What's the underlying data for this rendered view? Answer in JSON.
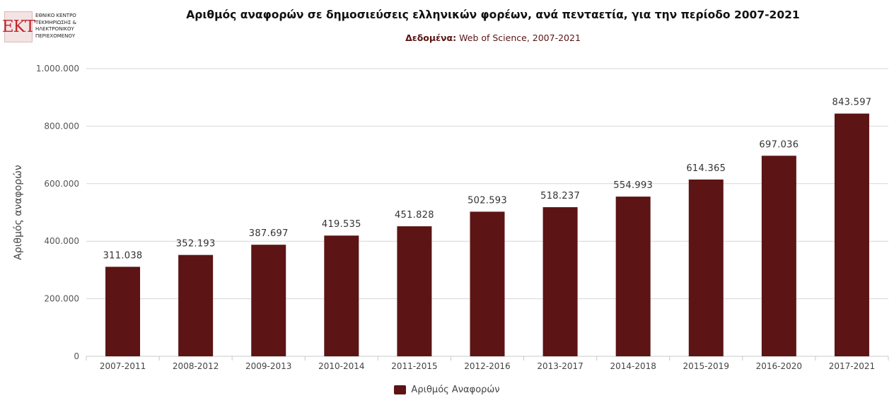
{
  "logo": {
    "mark": "EKT",
    "lines": [
      "ΕΘΝΙΚΟ ΚΕΝΤΡΟ",
      "ΤΕΚΜΗΡΙΩΣΗΣ &",
      "ΗΛΕΚΤΡΟΝΙΚΟΥ",
      "ΠΕΡΙΕΧΟΜΕΝΟΥ"
    ]
  },
  "chart_data": {
    "type": "bar",
    "title": "Αριθμός αναφορών σε δημοσιεύσεις ελληνικών φορέων, ανά πενταετία, για την περίοδο 2007-2021",
    "subtitle_label": "Δεδομένα:",
    "subtitle_value": " Web of Science, 2007-2021",
    "xlabel": "",
    "ylabel": "Αριθμός αναφορών",
    "ylim": [
      0,
      1000000
    ],
    "y_ticks": [
      0,
      200000,
      400000,
      600000,
      800000,
      1000000
    ],
    "y_tick_labels": [
      "0",
      "200.000",
      "400.000",
      "600.000",
      "800.000",
      "1.000.000"
    ],
    "categories": [
      "2007-2011",
      "2008-2012",
      "2009-2013",
      "2010-2014",
      "2011-2015",
      "2012-2016",
      "2013-2017",
      "2014-2018",
      "2015-2019",
      "2016-2020",
      "2017-2021"
    ],
    "series": [
      {
        "name": "Αριθμός Αναφορών",
        "color": "#5c1414",
        "values": [
          311038,
          352193,
          387697,
          419535,
          451828,
          502593,
          518237,
          554993,
          614365,
          697036,
          843597
        ],
        "labels": [
          "311.038",
          "352.193",
          "387.697",
          "419.535",
          "451.828",
          "502.593",
          "518.237",
          "554.993",
          "614.365",
          "697.036",
          "843.597"
        ]
      }
    ],
    "grid": true,
    "legend_position": "bottom-center"
  }
}
